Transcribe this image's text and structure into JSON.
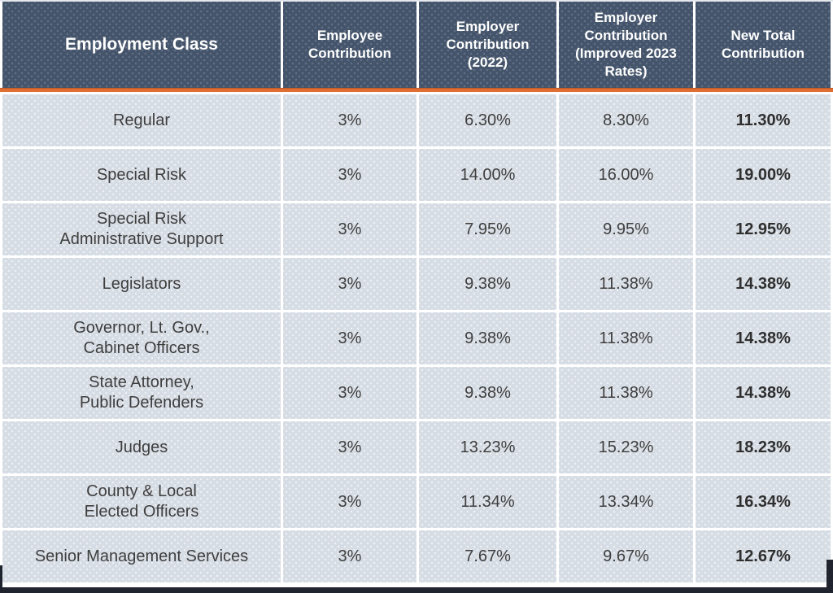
{
  "chart_data": {
    "type": "table",
    "columns": [
      "Employment Class",
      "Employee Contribution",
      "Employer Contribution (2022)",
      "Employer Contribution (Improved 2023 Rates)",
      "New Total Contribution"
    ],
    "rows": [
      [
        "Regular",
        "3%",
        "6.30%",
        "8.30%",
        "11.30%"
      ],
      [
        "Special Risk",
        "3%",
        "14.00%",
        "16.00%",
        "19.00%"
      ],
      [
        "Special Risk\nAdministrative Support",
        "3%",
        "7.95%",
        "9.95%",
        "12.95%"
      ],
      [
        "Legislators",
        "3%",
        "9.38%",
        "11.38%",
        "14.38%"
      ],
      [
        "Governor, Lt. Gov.,\nCabinet Officers",
        "3%",
        "9.38%",
        "11.38%",
        "14.38%"
      ],
      [
        "State Attorney,\nPublic Defenders",
        "3%",
        "9.38%",
        "11.38%",
        "14.38%"
      ],
      [
        "Judges",
        "3%",
        "13.23%",
        "15.23%",
        "18.23%"
      ],
      [
        "County & Local\nElected Officers",
        "3%",
        "11.34%",
        "13.34%",
        "16.34%"
      ],
      [
        "Senior Management Services",
        "3%",
        "7.67%",
        "9.67%",
        "12.67%"
      ]
    ]
  },
  "colors": {
    "header_bg": "#44546A",
    "header_text": "#FFFFFF",
    "accent_line": "#E06E33",
    "row_bg": "#D6DCE4",
    "body_text": "#3E3E3E",
    "separator": "#FFFFFF",
    "frame": "#20242E"
  }
}
